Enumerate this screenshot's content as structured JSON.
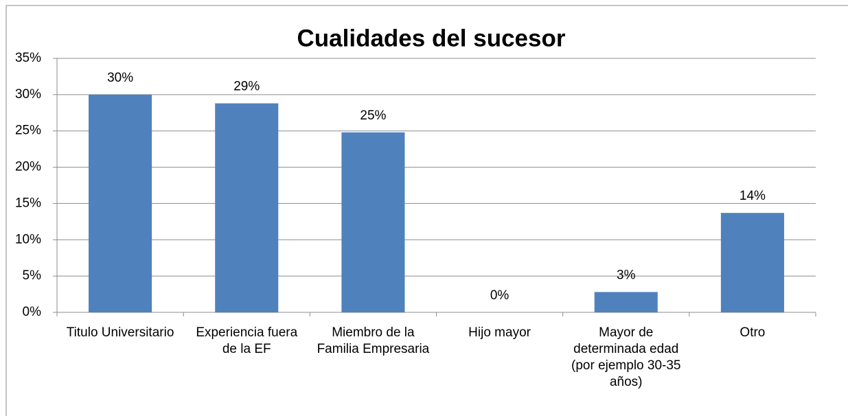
{
  "chart_data": {
    "type": "bar",
    "title": "Cualidades del sucesor",
    "categories": [
      "Titulo Universitario",
      "Experiencia fuera de la EF",
      "Miembro de la Familia Empresaria",
      "Hijo mayor",
      "Mayor de determinada edad (por ejemplo 30-35 años)",
      "Otro"
    ],
    "values": [
      30,
      28.8,
      24.8,
      0,
      2.8,
      13.7
    ],
    "value_labels": [
      "30%",
      "29%",
      "25%",
      "0%",
      "3%",
      "14%"
    ],
    "color": "#4f81bd",
    "ylim": [
      0,
      35
    ],
    "yticks": [
      {
        "value": 0,
        "label": "0%"
      },
      {
        "value": 5,
        "label": "5%"
      },
      {
        "value": 10,
        "label": "10%"
      },
      {
        "value": 15,
        "label": "15%"
      },
      {
        "value": 20,
        "label": "20%"
      },
      {
        "value": 25,
        "label": "25%"
      },
      {
        "value": 30,
        "label": "30%"
      },
      {
        "value": 35,
        "label": "35%"
      }
    ],
    "grid": true
  }
}
